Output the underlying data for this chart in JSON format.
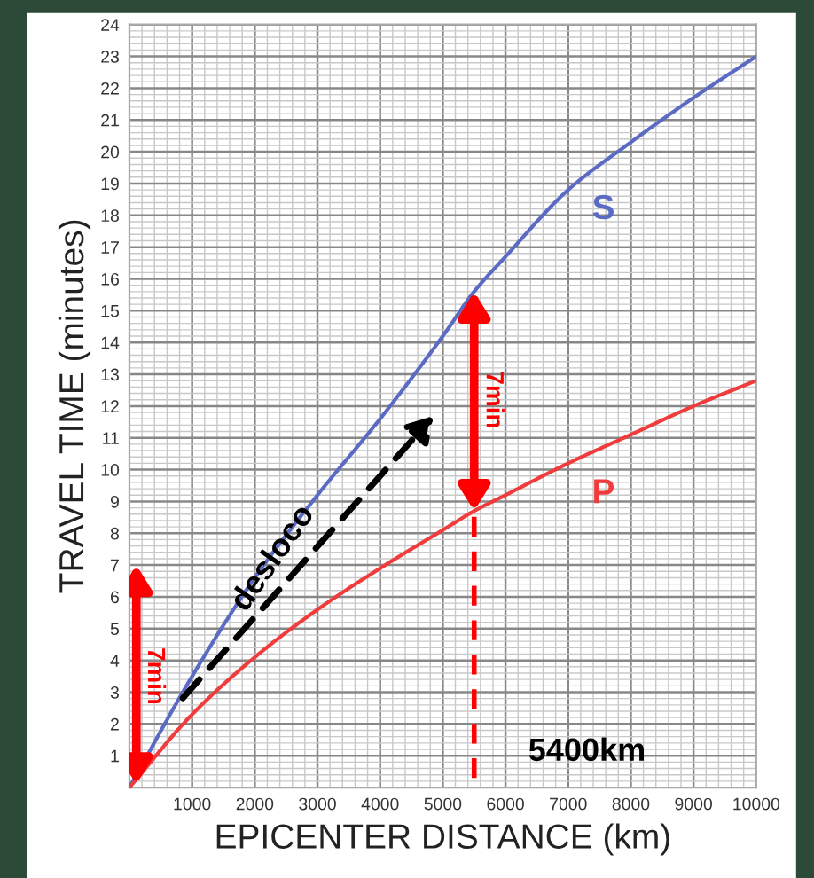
{
  "chart_data": {
    "type": "line",
    "xlabel": "EPICENTER DISTANCE (km)",
    "ylabel": "TRAVEL TIME (minutes)",
    "x": [
      0,
      1000,
      2000,
      3000,
      4000,
      5000,
      5500,
      6000,
      7000,
      8000,
      9000,
      10000
    ],
    "series": [
      {
        "name": "S",
        "color": "#5b6bc4",
        "values": [
          0,
          3.5,
          6.6,
          9.2,
          11.6,
          14.2,
          15.6,
          16.7,
          18.8,
          20.3,
          21.7,
          23.0
        ]
      },
      {
        "name": "P",
        "color": "#f03c3c",
        "values": [
          0,
          2.3,
          4.1,
          5.6,
          6.9,
          8.1,
          8.7,
          9.2,
          10.2,
          11.1,
          12.0,
          12.8
        ]
      }
    ],
    "xlim": [
      0,
      10000
    ],
    "ylim": [
      0,
      24
    ],
    "xticks": [
      1000,
      2000,
      3000,
      4000,
      5000,
      6000,
      7000,
      8000,
      9000,
      10000
    ],
    "yticks": [
      1,
      2,
      3,
      4,
      5,
      6,
      7,
      8,
      9,
      10,
      11,
      12,
      13,
      14,
      15,
      16,
      17,
      18,
      19,
      20,
      21,
      22,
      23,
      24
    ],
    "grid": true,
    "marker": "none",
    "line_style": "solid",
    "ref_lines": [
      {
        "axis": "x",
        "value": 5500,
        "color": "#ff0000",
        "line_style": "dashed"
      }
    ],
    "annotations": [
      "7min",
      "7min",
      "desloco",
      "5400km"
    ]
  }
}
